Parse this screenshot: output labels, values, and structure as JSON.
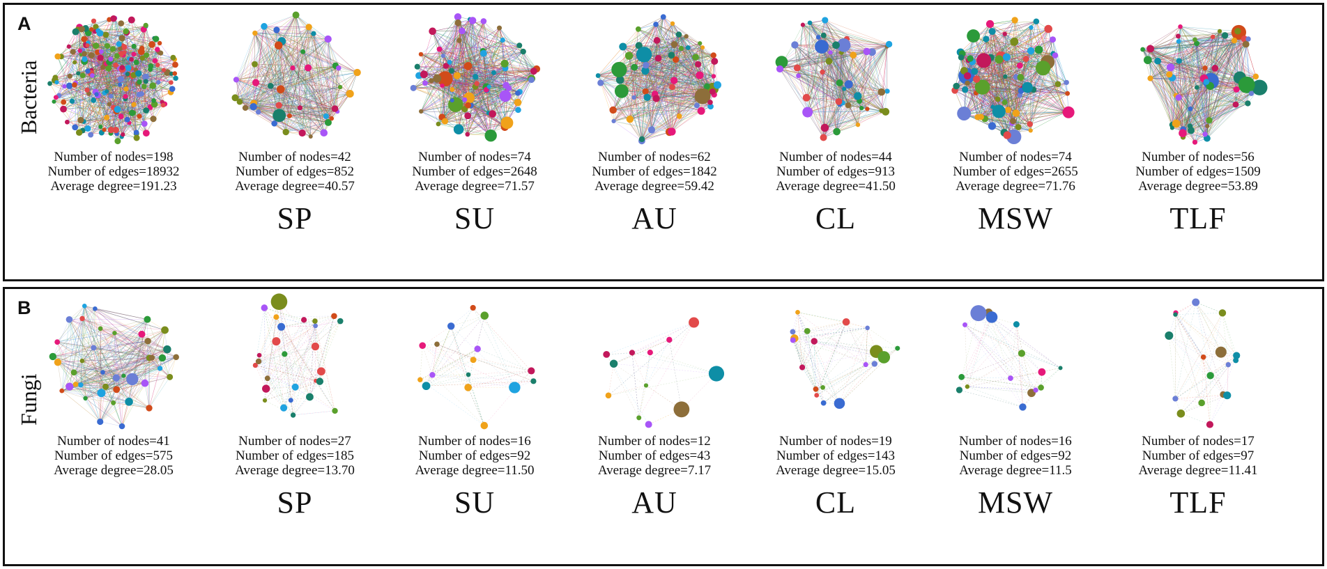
{
  "panels": [
    {
      "letter": "A",
      "kingdom": "Bacteria",
      "networks": [
        {
          "site": "",
          "nodes_text": "Number of nodes=198",
          "edges_text": "Number of edges=18932",
          "degree_text": "Average degree=191.23",
          "nodes": 198,
          "edges": 18932
        },
        {
          "site": "SP",
          "nodes_text": "Number of nodes=42",
          "edges_text": "Number of edges=852",
          "degree_text": "Average degree=40.57",
          "nodes": 42,
          "edges": 852
        },
        {
          "site": "SU",
          "nodes_text": "Number of nodes=74",
          "edges_text": "Number of edges=2648",
          "degree_text": "Average degree=71.57",
          "nodes": 74,
          "edges": 2648
        },
        {
          "site": "AU",
          "nodes_text": "Number of nodes=62",
          "edges_text": "Number of edges=1842",
          "degree_text": "Average degree=59.42",
          "nodes": 62,
          "edges": 1842
        },
        {
          "site": "CL",
          "nodes_text": "Number of nodes=44",
          "edges_text": "Number of edges=913",
          "degree_text": "Average degree=41.50",
          "nodes": 44,
          "edges": 913
        },
        {
          "site": "MSW",
          "nodes_text": "Number of nodes=74",
          "edges_text": "Number of edges=2655",
          "degree_text": "Average degree=71.76",
          "nodes": 74,
          "edges": 2655
        },
        {
          "site": "TLF",
          "nodes_text": "Number of nodes=56",
          "edges_text": "Number of edges=1509",
          "degree_text": "Average degree=53.89",
          "nodes": 56,
          "edges": 1509
        }
      ]
    },
    {
      "letter": "B",
      "kingdom": "Fungi",
      "networks": [
        {
          "site": "",
          "nodes_text": "Number of nodes=41",
          "edges_text": "Number of edges=575",
          "degree_text": "Average degree=28.05",
          "nodes": 41,
          "edges": 575
        },
        {
          "site": "SP",
          "nodes_text": "Number of nodes=27",
          "edges_text": "Number of edges=185",
          "degree_text": "Average degree=13.70",
          "nodes": 27,
          "edges": 185
        },
        {
          "site": "SU",
          "nodes_text": "Number of nodes=16",
          "edges_text": "Number of edges=92",
          "degree_text": "Average degree=11.50",
          "nodes": 16,
          "edges": 92
        },
        {
          "site": "AU",
          "nodes_text": "Number of nodes=12",
          "edges_text": "Number of edges=43",
          "degree_text": "Average degree=7.17",
          "nodes": 12,
          "edges": 43
        },
        {
          "site": "CL",
          "nodes_text": "Number of nodes=19",
          "edges_text": "Number of edges=143",
          "degree_text": "Average degree=15.05",
          "nodes": 19,
          "edges": 143
        },
        {
          "site": "MSW",
          "nodes_text": "Number of nodes=16",
          "edges_text": "Number of edges=92",
          "degree_text": "Average degree=11.5",
          "nodes": 16,
          "edges": 92
        },
        {
          "site": "TLF",
          "nodes_text": "Number of nodes=17",
          "edges_text": "Number of edges=97",
          "degree_text": "Average degree=11.41",
          "nodes": 17,
          "edges": 97
        }
      ]
    }
  ],
  "palette": [
    "#2b9a3a",
    "#1fa3e0",
    "#e6197a",
    "#7a8d1d",
    "#d14b1a",
    "#a855f7",
    "#1a7f6b",
    "#f0a21a",
    "#6b7fd6",
    "#c2185b",
    "#0e8ea6",
    "#8d6e3a",
    "#5aa02c",
    "#e24a4a",
    "#3a6bd1"
  ]
}
